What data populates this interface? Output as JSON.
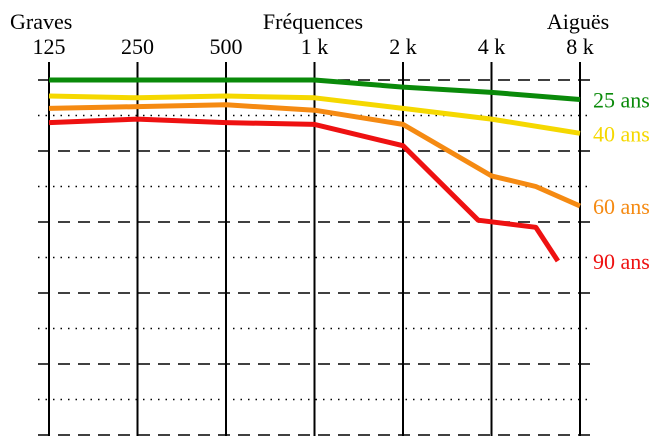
{
  "chart_data": {
    "type": "line",
    "title": "Fréquences",
    "left_label": "Graves",
    "right_label": "Aiguës",
    "categories": [
      "125",
      "250",
      "500",
      "1 k",
      "2 k",
      "4 k",
      "8 k"
    ],
    "y_levels": 10,
    "series": [
      {
        "name": "25 ans",
        "color": "#0a8a0a",
        "x": [
          0,
          1,
          2,
          3,
          4,
          5,
          6
        ],
        "y": [
          0.0,
          0.0,
          0.0,
          0.0,
          0.2,
          0.35,
          0.55
        ]
      },
      {
        "name": "40 ans",
        "color": "#f5d800",
        "x": [
          0,
          1,
          2,
          3,
          4,
          5,
          6
        ],
        "y": [
          0.45,
          0.5,
          0.45,
          0.5,
          0.8,
          1.1,
          1.5
        ]
      },
      {
        "name": "60 ans",
        "color": "#f58a12",
        "x": [
          0,
          1,
          2,
          3,
          4,
          5,
          5.5,
          6
        ],
        "y": [
          0.8,
          0.75,
          0.7,
          0.85,
          1.25,
          2.7,
          3.0,
          3.55
        ]
      },
      {
        "name": "90 ans",
        "color": "#ee1111",
        "x": [
          0,
          1,
          2,
          3,
          4,
          4.85,
          5.5,
          5.75
        ],
        "y": [
          1.2,
          1.1,
          1.2,
          1.25,
          1.85,
          3.95,
          4.15,
          5.1
        ]
      }
    ]
  }
}
